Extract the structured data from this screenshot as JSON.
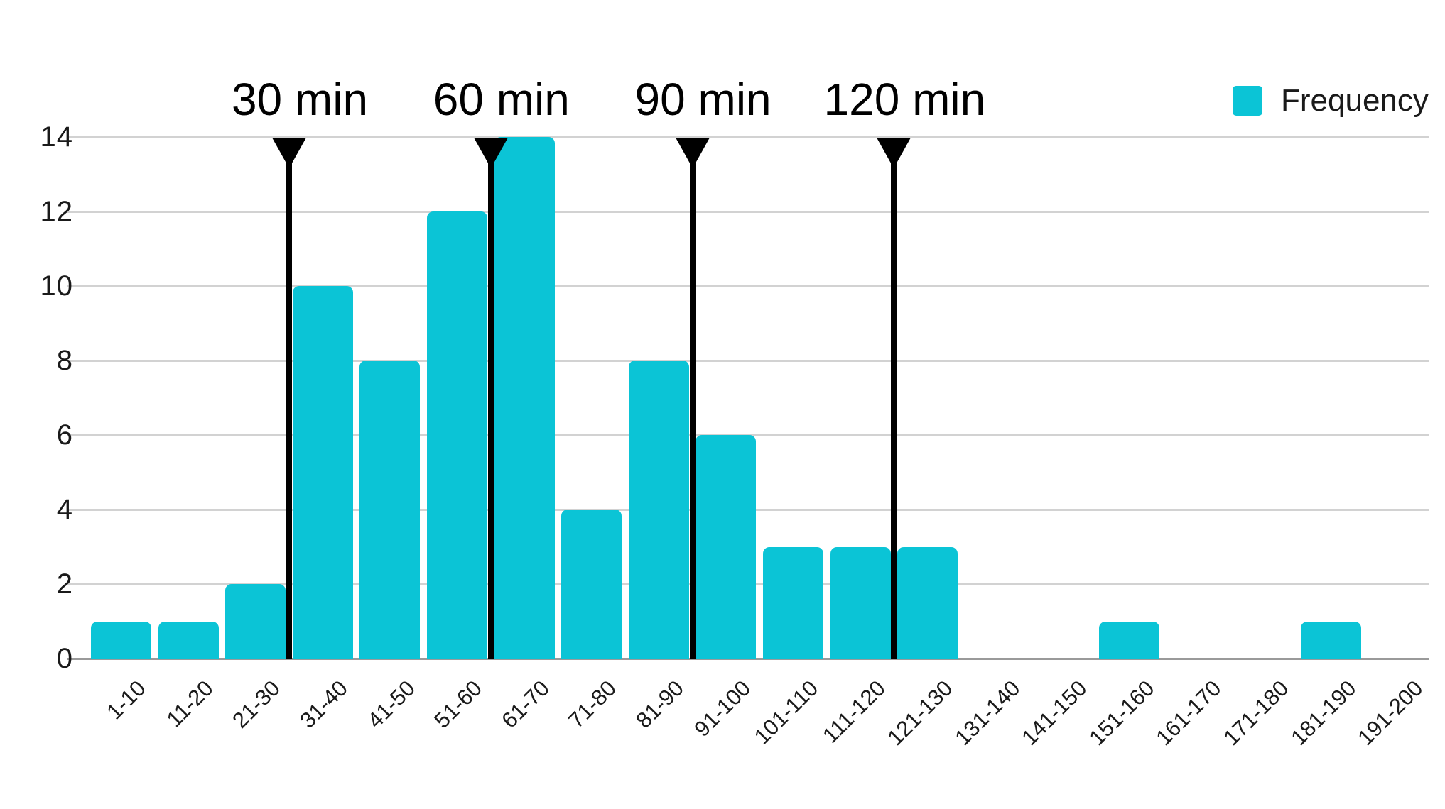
{
  "chart_data": {
    "type": "bar",
    "title": "",
    "xlabel": "",
    "ylabel": "",
    "categories": [
      "1-10",
      "11-20",
      "21-30",
      "31-40",
      "41-50",
      "51-60",
      "61-70",
      "71-80",
      "81-90",
      "91-100",
      "101-110",
      "111-120",
      "121-130",
      "131-140",
      "141-150",
      "151-160",
      "161-170",
      "171-180",
      "181-190",
      "191-200"
    ],
    "values": [
      1,
      1,
      2,
      10,
      8,
      12,
      14,
      4,
      8,
      6,
      3,
      3,
      3,
      0,
      0,
      1,
      0,
      0,
      1,
      0
    ],
    "series_name": "Frequency",
    "ylim": [
      0,
      14
    ],
    "yticks": [
      0,
      2,
      4,
      6,
      8,
      10,
      12,
      14
    ],
    "grid": true,
    "legend_position": "top-right",
    "markers": [
      {
        "label": "30 min",
        "x_value": 30
      },
      {
        "label": "60 min",
        "x_value": 60
      },
      {
        "label": "90 min",
        "x_value": 90
      },
      {
        "label": "120 min",
        "x_value": 120
      }
    ]
  },
  "legend": {
    "label": "Frequency"
  },
  "colors": {
    "accent": "#0bc4d6",
    "marker": "#000000",
    "gridline": "#d2d2d2",
    "axis": "#9a9a9a",
    "text": "#1a1a1a"
  }
}
